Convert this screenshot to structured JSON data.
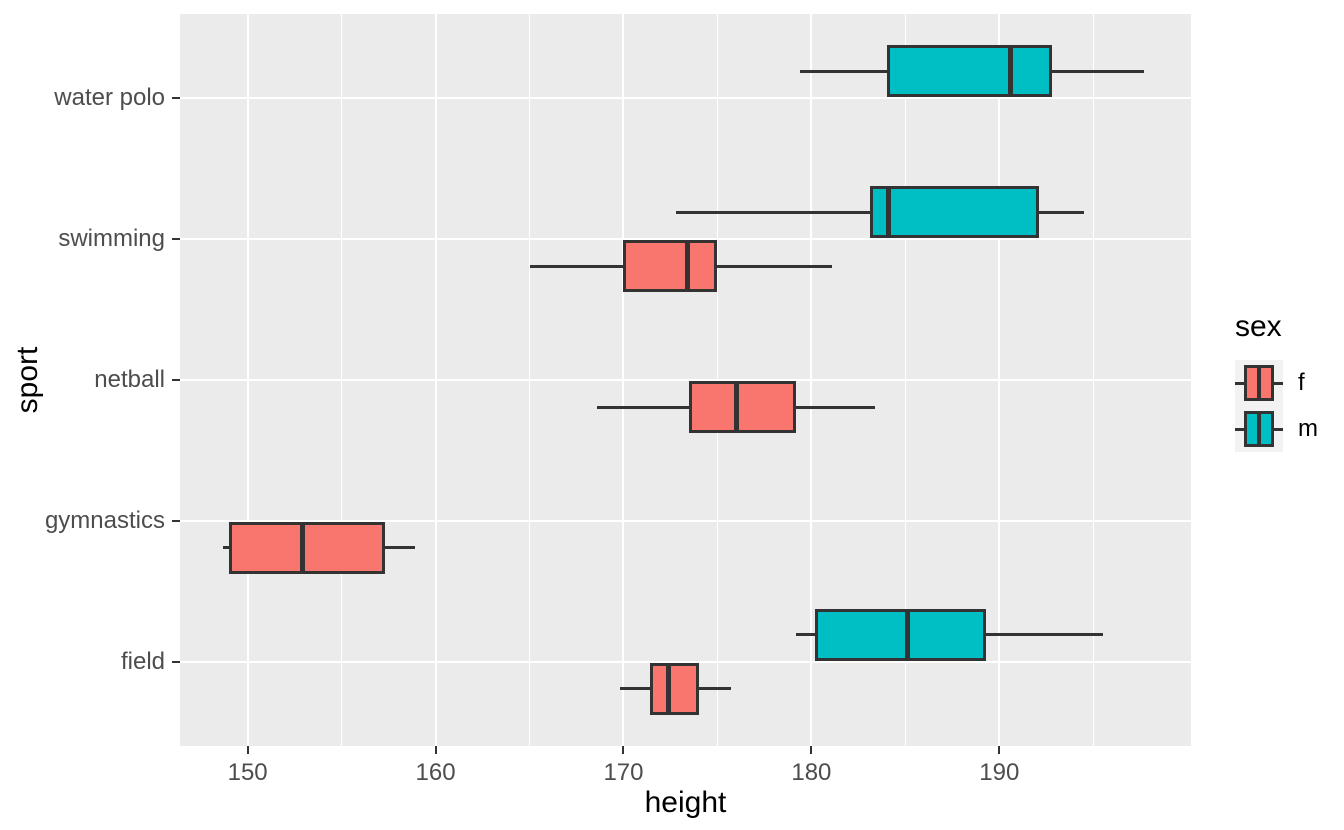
{
  "chart_data": {
    "type": "boxplot",
    "orientation": "horizontal",
    "title": "",
    "xlabel": "height",
    "ylabel": "sport",
    "xlim": [
      146.4,
      200.2
    ],
    "x_major_ticks": [
      150,
      160,
      170,
      180,
      190
    ],
    "x_minor_ticks": [
      155,
      165,
      175,
      185,
      195
    ],
    "categories": [
      "water polo",
      "swimming",
      "netball",
      "gymnastics",
      "field"
    ],
    "series": [
      {
        "name": "f",
        "color": "#F8766D",
        "boxes": [
          {
            "category": "swimming",
            "min": 165.0,
            "q1": 170.0,
            "median": 173.4,
            "q3": 175.0,
            "max": 181.1
          },
          {
            "category": "netball",
            "min": 168.6,
            "q1": 173.5,
            "median": 176.0,
            "q3": 179.2,
            "max": 183.4
          },
          {
            "category": "gymnastics",
            "min": 148.7,
            "q1": 149.0,
            "median": 152.9,
            "q3": 157.3,
            "max": 158.9
          },
          {
            "category": "field",
            "min": 169.8,
            "q1": 171.4,
            "median": 172.4,
            "q3": 174.0,
            "max": 175.7
          }
        ]
      },
      {
        "name": "m",
        "color": "#00BFC4",
        "boxes": [
          {
            "category": "water polo",
            "min": 179.4,
            "q1": 184.0,
            "median": 190.6,
            "q3": 192.8,
            "max": 197.7
          },
          {
            "category": "swimming",
            "min": 172.8,
            "q1": 183.1,
            "median": 184.1,
            "q3": 192.1,
            "max": 194.5
          },
          {
            "category": "field",
            "min": 179.2,
            "q1": 180.2,
            "median": 185.1,
            "q3": 189.3,
            "max": 195.5
          }
        ]
      }
    ],
    "legend": {
      "title": "sex",
      "position": "right",
      "entries": [
        {
          "label": "f",
          "color": "#F8766D"
        },
        {
          "label": "m",
          "color": "#00BFC4"
        }
      ]
    },
    "style": {
      "background": "#FFFFFF",
      "panel_bg": "#EBEBEB",
      "grid_color": "#FFFFFF",
      "box_border": "#333333",
      "axis_text_color": "#4D4D4D",
      "axis_title_color": "#000000",
      "legend_key_bg": "#F2F2F2"
    },
    "grid": "on"
  }
}
